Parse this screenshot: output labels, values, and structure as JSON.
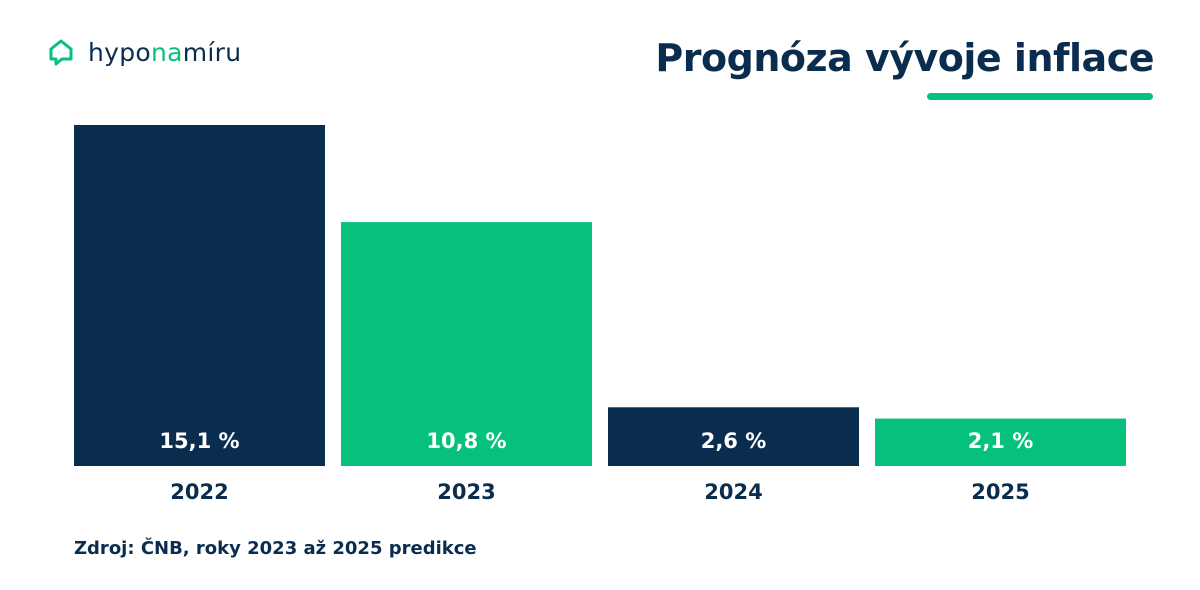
{
  "brand": {
    "name_part1": "hypo",
    "name_part2": "na",
    "name_part3": "míru",
    "logo_icon": "house-chat-icon",
    "color_dark": "#0a2d4f",
    "color_accent": "#06c17c"
  },
  "title": "Prognóza vývoje inflace",
  "source": "Zdroj: ČNB, roky 2023 až 2025 predikce",
  "chart_data": {
    "type": "bar",
    "categories": [
      "2022",
      "2023",
      "2024",
      "2025"
    ],
    "values": [
      15.1,
      10.8,
      2.6,
      2.1
    ],
    "value_labels": [
      "15,1 %",
      "10,8 %",
      "2,6 %",
      "2,1 %"
    ],
    "bar_colors": [
      "#0a2d4f",
      "#06c17c",
      "#0a2d4f",
      "#06c17c"
    ],
    "title": "Prognóza vývoje inflace",
    "xlabel": "",
    "ylabel": "",
    "ylim": [
      0,
      15.1
    ],
    "grid": false,
    "legend": "none"
  }
}
